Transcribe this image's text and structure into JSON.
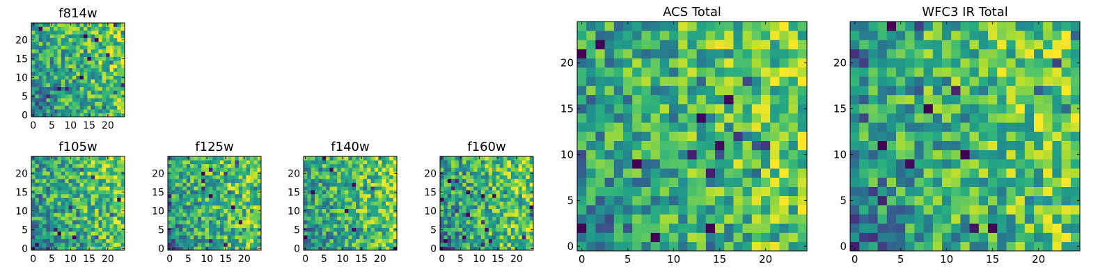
{
  "chart_data": [
    {
      "type": "heatmap",
      "id": "f814w",
      "title": "f814w",
      "grid": [
        25,
        25
      ],
      "colormap": "viridis",
      "seed": 11,
      "xticks": [
        0,
        5,
        10,
        15,
        20
      ],
      "yticks": [
        0,
        5,
        10,
        15,
        20
      ],
      "xlim": [
        0,
        24
      ],
      "ylim": [
        0,
        24
      ]
    },
    {
      "type": "heatmap",
      "id": "f105w",
      "title": "f105w",
      "grid": [
        25,
        25
      ],
      "colormap": "viridis",
      "seed": 23,
      "xticks": [
        0,
        5,
        10,
        15,
        20
      ],
      "yticks": [
        0,
        5,
        10,
        15,
        20
      ],
      "xlim": [
        0,
        24
      ],
      "ylim": [
        0,
        24
      ]
    },
    {
      "type": "heatmap",
      "id": "f125w",
      "title": "f125w",
      "grid": [
        25,
        25
      ],
      "colormap": "viridis",
      "seed": 37,
      "xticks": [
        0,
        5,
        10,
        15,
        20
      ],
      "yticks": [
        0,
        5,
        10,
        15,
        20
      ],
      "xlim": [
        0,
        24
      ],
      "ylim": [
        0,
        24
      ]
    },
    {
      "type": "heatmap",
      "id": "f140w",
      "title": "f140w",
      "grid": [
        25,
        25
      ],
      "colormap": "viridis",
      "seed": 41,
      "xticks": [
        0,
        5,
        10,
        15,
        20
      ],
      "yticks": [
        0,
        5,
        10,
        15,
        20
      ],
      "xlim": [
        0,
        24
      ],
      "ylim": [
        0,
        24
      ]
    },
    {
      "type": "heatmap",
      "id": "f160w",
      "title": "f160w",
      "grid": [
        25,
        25
      ],
      "colormap": "viridis",
      "seed": 53,
      "xticks": [
        0,
        5,
        10,
        15,
        20
      ],
      "yticks": [
        0,
        5,
        10,
        15,
        20
      ],
      "xlim": [
        0,
        24
      ],
      "ylim": [
        0,
        24
      ]
    },
    {
      "type": "heatmap",
      "id": "acs-total",
      "title": "ACS Total",
      "grid": [
        25,
        25
      ],
      "colormap": "viridis",
      "seed": 67,
      "xticks": [
        0,
        5,
        10,
        15,
        20
      ],
      "yticks": [
        0,
        5,
        10,
        15,
        20
      ],
      "xlim": [
        0,
        24
      ],
      "ylim": [
        0,
        24
      ]
    },
    {
      "type": "heatmap",
      "id": "wfc3-ir-total",
      "title": "WFC3 IR Total",
      "grid": [
        25,
        25
      ],
      "colormap": "viridis",
      "seed": 79,
      "xticks": [
        0,
        5,
        10,
        15,
        20
      ],
      "yticks": [
        0,
        5,
        10,
        15,
        20
      ],
      "xlim": [
        0,
        24
      ],
      "ylim": [
        0,
        24
      ]
    }
  ]
}
